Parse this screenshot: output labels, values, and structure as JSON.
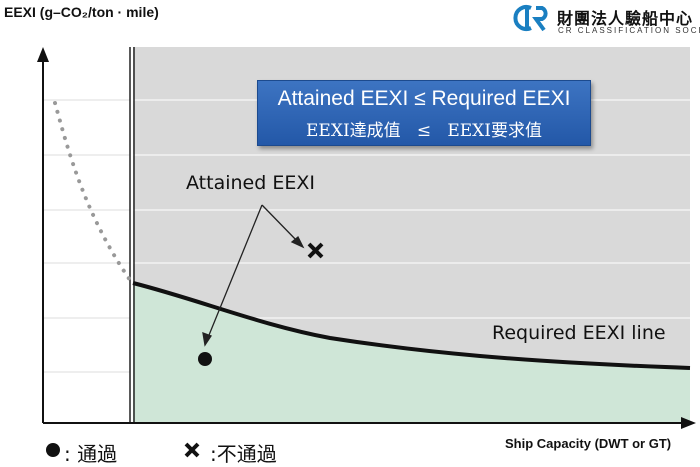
{
  "axes": {
    "y_label": "EEXI (g–CO₂/ton · mile)",
    "x_label": "Ship Capacity (DWT or GT)"
  },
  "logo": {
    "chinese": "財團法人驗船中心",
    "english": "CR CLASSIFICATION SOCIETY",
    "mark_color": "#1a7fc1"
  },
  "banner": {
    "line1": "Attained EEXI ≤ Required EEXI",
    "line2": "EEXI達成值   ≤   EEXI要求值",
    "color": "#2d64b4"
  },
  "annotations": {
    "attained": "Attained EEXI",
    "required_line": "Required EEXI line"
  },
  "legend": {
    "pass_label": ": 通過",
    "fail_label": ":不通過"
  },
  "colors": {
    "fail_region": "#d9d9d9",
    "pass_region": "#cfe6d7",
    "curve": "#111111",
    "dotted_curve": "#999999"
  }
}
